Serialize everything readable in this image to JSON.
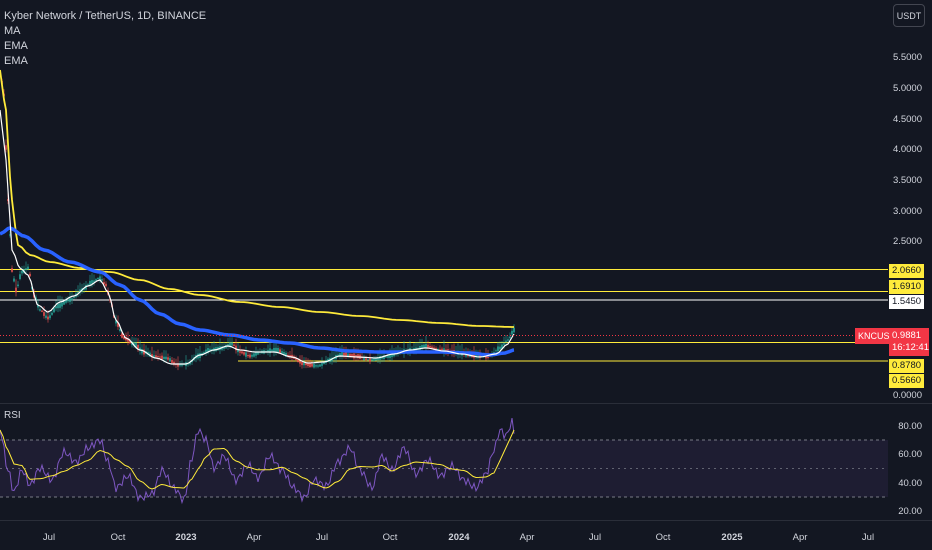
{
  "header": {
    "title": "Kyber Network / TetherUS, 1D, BINANCE",
    "indicators": [
      "MA",
      "EMA",
      "EMA"
    ],
    "currency_button": "USDT"
  },
  "price_axis": {
    "labels": [
      "5.5000",
      "5.0000",
      "4.5000",
      "4.0000",
      "3.5000",
      "3.0000",
      "2.5000",
      "0.0000"
    ]
  },
  "rsi": {
    "label": "RSI",
    "axis_labels": [
      "80.00",
      "60.00",
      "40.00",
      "20.00"
    ],
    "band_upper": 70,
    "band_lower": 30
  },
  "time_axis": {
    "labels": [
      "Jul",
      "Oct",
      "2023",
      "Apr",
      "Jul",
      "Oct",
      "2024",
      "Apr",
      "Jul",
      "Oct",
      "2025",
      "Apr",
      "Jul"
    ]
  },
  "levels": [
    {
      "value": "2.0660",
      "color": "#ffeb3b"
    },
    {
      "value": "1.6910",
      "color": "#ffeb3b"
    },
    {
      "value": "1.5450",
      "color": "#ffffff"
    },
    {
      "value": "0.8780",
      "color": "#ffeb3b"
    },
    {
      "value": "0.5660",
      "color": "#ffeb3b"
    }
  ],
  "current": {
    "symbol": "KNCUSDT",
    "price": "0.9881",
    "countdown": "16:12:41",
    "color": "#f23645"
  },
  "colors": {
    "background": "#131722",
    "ma_line": "#2962ff",
    "ema_long": "#ffeb3b",
    "ema_short": "#ffffff",
    "rsi_line": "#7e57c2",
    "rsi_ma": "#ffeb3b"
  }
}
